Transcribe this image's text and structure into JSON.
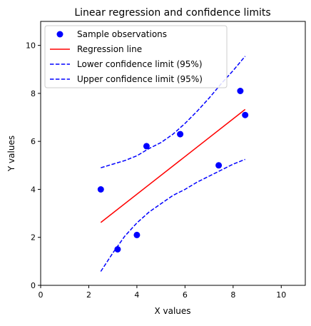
{
  "chart_data": {
    "type": "scatter",
    "title": "Linear regression and confidence limits",
    "xlabel": "X values",
    "ylabel": "Y values",
    "xlim": [
      0,
      11
    ],
    "ylim": [
      0,
      11
    ],
    "x_ticks": [
      0,
      2,
      4,
      6,
      8,
      10
    ],
    "y_ticks": [
      0,
      2,
      4,
      6,
      8,
      10
    ],
    "grid": false,
    "legend_position": "top-left",
    "series": [
      {
        "name": "Sample observations",
        "kind": "points",
        "color": "#0000ff",
        "points": [
          [
            2.5,
            4.0
          ],
          [
            3.2,
            1.5
          ],
          [
            4.0,
            2.1
          ],
          [
            4.4,
            5.8
          ],
          [
            5.8,
            6.3
          ],
          [
            7.4,
            5.0
          ],
          [
            8.3,
            8.1
          ],
          [
            8.5,
            7.1
          ]
        ]
      },
      {
        "name": "Regression line",
        "kind": "line",
        "dash": "solid",
        "color": "#ff0000",
        "points": [
          [
            2.5,
            2.62
          ],
          [
            8.5,
            7.33
          ]
        ]
      },
      {
        "name": "Lower confidence limit (95%)",
        "kind": "line",
        "dash": "dashed",
        "color": "#0000ff",
        "points": [
          [
            2.5,
            0.58
          ],
          [
            3.0,
            1.35
          ],
          [
            3.5,
            2.05
          ],
          [
            4.0,
            2.6
          ],
          [
            4.5,
            3.05
          ],
          [
            5.0,
            3.4
          ],
          [
            5.5,
            3.75
          ],
          [
            6.0,
            4.0
          ],
          [
            6.5,
            4.3
          ],
          [
            7.0,
            4.55
          ],
          [
            7.5,
            4.8
          ],
          [
            8.0,
            5.05
          ],
          [
            8.5,
            5.25
          ]
        ]
      },
      {
        "name": "Upper confidence limit (95%)",
        "kind": "line",
        "dash": "dashed",
        "color": "#0000ff",
        "points": [
          [
            2.5,
            4.9
          ],
          [
            3.0,
            5.05
          ],
          [
            3.5,
            5.2
          ],
          [
            4.0,
            5.4
          ],
          [
            4.5,
            5.7
          ],
          [
            5.0,
            5.95
          ],
          [
            5.5,
            6.3
          ],
          [
            6.0,
            6.75
          ],
          [
            6.5,
            7.25
          ],
          [
            7.0,
            7.8
          ],
          [
            7.5,
            8.4
          ],
          [
            8.0,
            8.95
          ],
          [
            8.5,
            9.55
          ]
        ]
      }
    ]
  }
}
